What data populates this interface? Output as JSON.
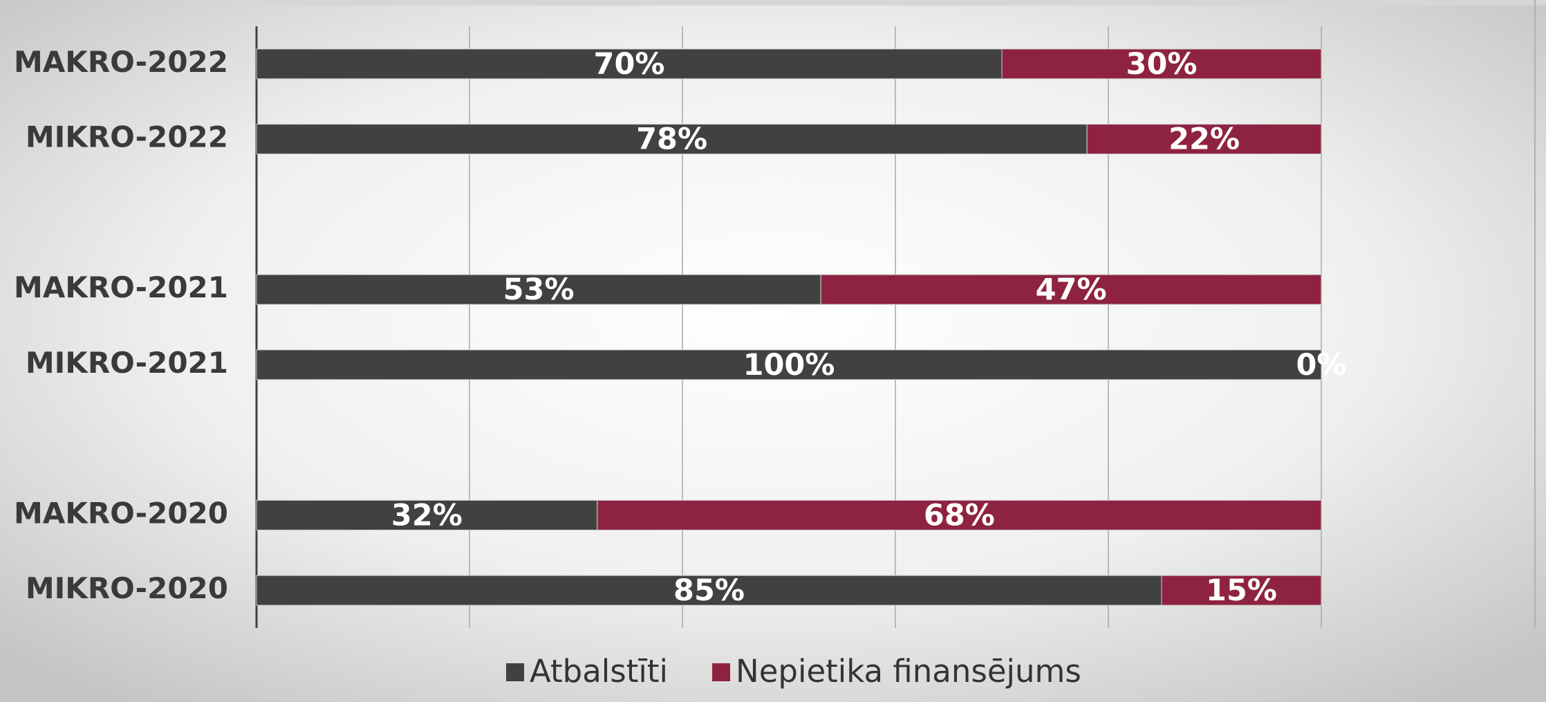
{
  "chart_data": {
    "type": "stacked_bar_horizontal",
    "categories": [
      "MAKRO-2022",
      "MIKRO-2022",
      null,
      "MAKRO-2021",
      "MIKRO-2021",
      null,
      "MAKRO-2020",
      "MIKRO-2020"
    ],
    "series": [
      {
        "name": "Atbalstīti",
        "color": "#414141",
        "values": [
          70,
          78,
          null,
          53,
          100,
          null,
          32,
          85
        ],
        "value_labels": [
          "70%",
          "78%",
          null,
          "53%",
          "100%",
          null,
          "32%",
          "85%"
        ]
      },
      {
        "name": "Nepietika finansējums",
        "color": "#8e2341",
        "values": [
          30,
          22,
          null,
          47,
          0,
          null,
          68,
          15
        ],
        "value_labels": [
          "30%",
          "22%",
          null,
          "47%",
          "0%",
          null,
          "68%",
          "15%"
        ]
      }
    ],
    "xlim": [
      0,
      100
    ],
    "xticks": [
      0,
      20,
      40,
      60,
      80,
      100
    ],
    "grid": true,
    "legend": "bottom"
  }
}
